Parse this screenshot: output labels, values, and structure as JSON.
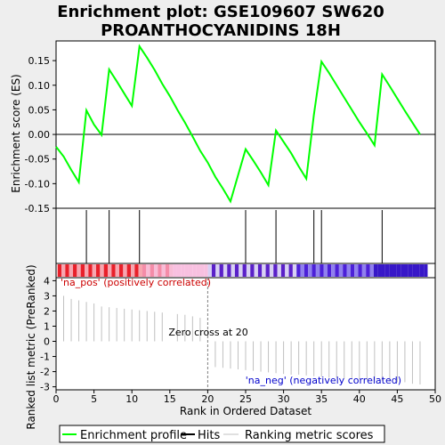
{
  "title_line1": "Enrichment plot: GSE109607 SW620",
  "title_line2": "PROANTHOCYANIDINS 18H",
  "colors": {
    "es_line": "#00ff00",
    "hits": "#000000",
    "metric": "#c0c0c0",
    "pos_text": "#cc0000",
    "neg_text": "#0000cc",
    "zero_line": "#808080"
  },
  "pos_label": "'na_pos' (positively correlated)",
  "neg_label": "'na_neg' (negatively correlated)",
  "zero_cross_label": "Zero cross at 20",
  "legend": {
    "es": "Enrichment profile",
    "hits": "Hits",
    "metric": "Ranking metric scores"
  },
  "chart_data": {
    "type": "line",
    "title": "Enrichment plot: GSE109607 SW620 PROANTHOCYANIDINS 18H",
    "xlabel": "Rank in Ordered Dataset",
    "x_ticks": [
      0,
      5,
      10,
      15,
      20,
      25,
      30,
      35,
      40,
      45,
      50
    ],
    "xlim": [
      0,
      50
    ],
    "es_panel": {
      "ylabel": "Enrichment score (ES)",
      "ylim": [
        -0.15,
        0.19
      ],
      "y_ticks": [
        -0.15,
        -0.1,
        -0.05,
        0.0,
        0.05,
        0.1,
        0.15
      ],
      "y_tick_labels": [
        "-0.15",
        "-0.10",
        "-0.05",
        "0.00",
        "0.05",
        "0.10",
        "0.15"
      ],
      "points": [
        [
          0,
          -0.025
        ],
        [
          1,
          -0.045
        ],
        [
          2,
          -0.072
        ],
        [
          3,
          -0.097
        ],
        [
          4,
          0.049
        ],
        [
          5,
          0.02
        ],
        [
          6,
          -0.001
        ],
        [
          7,
          0.132
        ],
        [
          8,
          0.108
        ],
        [
          9,
          0.083
        ],
        [
          10,
          0.058
        ],
        [
          11,
          0.179
        ],
        [
          12,
          0.156
        ],
        [
          13,
          0.131
        ],
        [
          14,
          0.103
        ],
        [
          15,
          0.078
        ],
        [
          16,
          0.05
        ],
        [
          17,
          0.024
        ],
        [
          18,
          -0.004
        ],
        [
          19,
          -0.033
        ],
        [
          20,
          -0.057
        ],
        [
          21,
          -0.086
        ],
        [
          22,
          -0.11
        ],
        [
          23,
          -0.136
        ],
        [
          25,
          -0.03
        ],
        [
          26,
          -0.053
        ],
        [
          27,
          -0.077
        ],
        [
          28,
          -0.103
        ],
        [
          29,
          0.008
        ],
        [
          30,
          -0.015
        ],
        [
          31,
          -0.038
        ],
        [
          32,
          -0.065
        ],
        [
          33,
          -0.09
        ],
        [
          34,
          0.04
        ],
        [
          35,
          0.148
        ],
        [
          36,
          0.125
        ],
        [
          37,
          0.1
        ],
        [
          38,
          0.075
        ],
        [
          39,
          0.05
        ],
        [
          40,
          0.025
        ],
        [
          41,
          0.002
        ],
        [
          42,
          -0.022
        ],
        [
          43,
          0.122
        ],
        [
          44,
          0.098
        ],
        [
          45,
          0.073
        ],
        [
          46,
          0.048
        ],
        [
          47,
          0.024
        ],
        [
          48,
          0.0
        ]
      ]
    },
    "hits": [
      4,
      7,
      11,
      25,
      29,
      34,
      35,
      43
    ],
    "metric_panel": {
      "ylabel": "Ranked list metric (PreRanked)",
      "ylim": [
        -3.2,
        4.2
      ],
      "y_ticks": [
        -3,
        -2,
        -1,
        0,
        1,
        2,
        3,
        4
      ],
      "zero_cross": 20,
      "bars": [
        [
          1,
          3.0
        ],
        [
          2,
          2.8
        ],
        [
          3,
          2.7
        ],
        [
          4,
          2.6
        ],
        [
          5,
          2.5
        ],
        [
          6,
          2.3
        ],
        [
          7,
          2.25
        ],
        [
          8,
          2.2
        ],
        [
          9,
          2.15
        ],
        [
          10,
          2.1
        ],
        [
          11,
          2.05
        ],
        [
          12,
          2.0
        ],
        [
          13,
          1.95
        ],
        [
          14,
          1.9
        ],
        [
          16,
          1.8
        ],
        [
          17,
          1.75
        ],
        [
          18,
          1.65
        ],
        [
          19,
          1.55
        ],
        [
          21,
          -1.7
        ],
        [
          22,
          -1.75
        ],
        [
          23,
          -1.8
        ],
        [
          24,
          -1.85
        ],
        [
          25,
          -1.9
        ],
        [
          26,
          -1.95
        ],
        [
          27,
          -2.0
        ],
        [
          28,
          -2.05
        ],
        [
          29,
          -2.1
        ],
        [
          30,
          -2.15
        ],
        [
          31,
          -2.2
        ],
        [
          32,
          -2.2
        ],
        [
          33,
          -2.25
        ],
        [
          34,
          -2.3
        ],
        [
          35,
          -2.35
        ],
        [
          36,
          -2.4
        ],
        [
          37,
          -2.4
        ],
        [
          38,
          -2.45
        ],
        [
          39,
          -2.5
        ],
        [
          40,
          -2.5
        ],
        [
          41,
          -2.55
        ],
        [
          42,
          -2.6
        ],
        [
          43,
          -2.6
        ],
        [
          44,
          -2.65
        ],
        [
          45,
          -2.7
        ],
        [
          46,
          -2.7
        ],
        [
          47,
          -2.8
        ],
        [
          48,
          -2.85
        ]
      ]
    }
  }
}
